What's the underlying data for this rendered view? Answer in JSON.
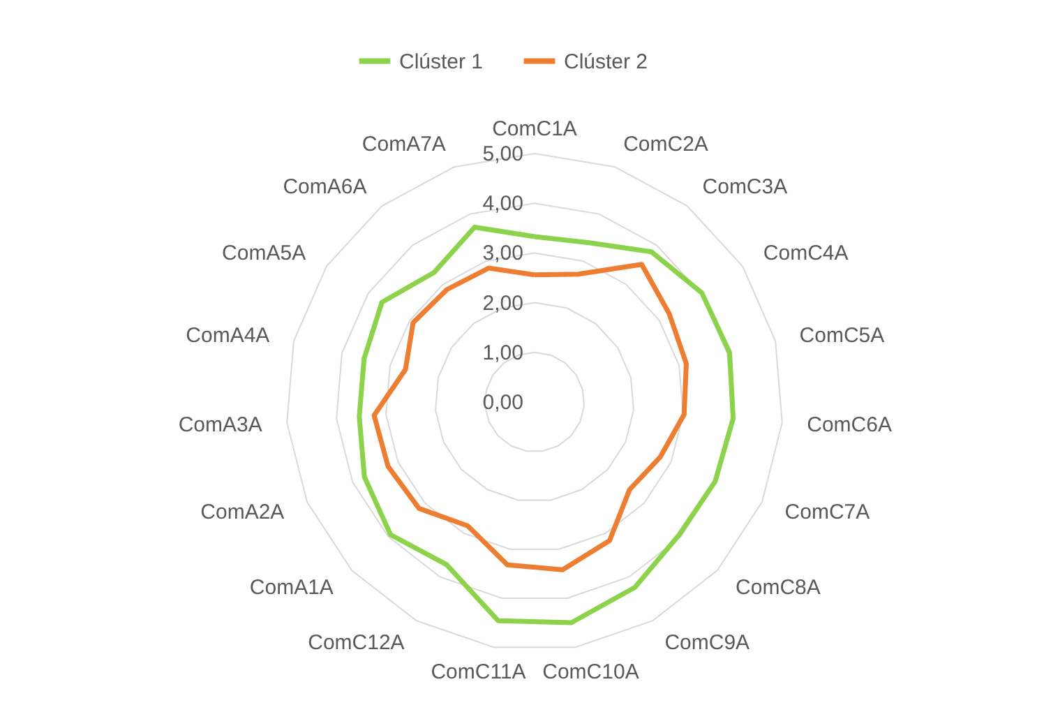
{
  "chart_data": {
    "type": "radar",
    "categories": [
      "ComC1A",
      "ComC2A",
      "ComC3A",
      "ComC4A",
      "ComC5A",
      "ComC6A",
      "ComC7A",
      "ComC8A",
      "ComC9A",
      "ComC10A",
      "ComC11A",
      "ComC12A",
      "ComA1A",
      "ComA2A",
      "ComA3A",
      "ComA4A",
      "ComA5A",
      "ComA6A",
      "ComA7A"
    ],
    "series": [
      {
        "name": "Clúster 1",
        "color": "#8cd24b",
        "values": [
          3.33,
          3.39,
          3.83,
          4.02,
          4.05,
          4.01,
          3.97,
          3.95,
          4.24,
          4.5,
          4.46,
          3.72,
          3.94,
          3.74,
          3.54,
          3.54,
          3.67,
          3.3,
          3.72
        ]
      },
      {
        "name": "Clúster 2",
        "color": "#ed7d31",
        "values": [
          2.56,
          2.72,
          3.51,
          3.24,
          3.15,
          3.02,
          2.76,
          2.6,
          3.17,
          3.42,
          3.32,
          2.83,
          3.16,
          3.22,
          3.24,
          2.68,
          2.92,
          2.87,
          2.85
        ]
      }
    ],
    "ylim": [
      0,
      5
    ],
    "yticks": [
      {
        "value": 0,
        "label": "0,00"
      },
      {
        "value": 1,
        "label": "1,00"
      },
      {
        "value": 2,
        "label": "2,00"
      },
      {
        "value": 3,
        "label": "3,00"
      },
      {
        "value": 4,
        "label": "4,00"
      },
      {
        "value": 5,
        "label": "5,00"
      }
    ],
    "grid": true,
    "legend": "top"
  }
}
